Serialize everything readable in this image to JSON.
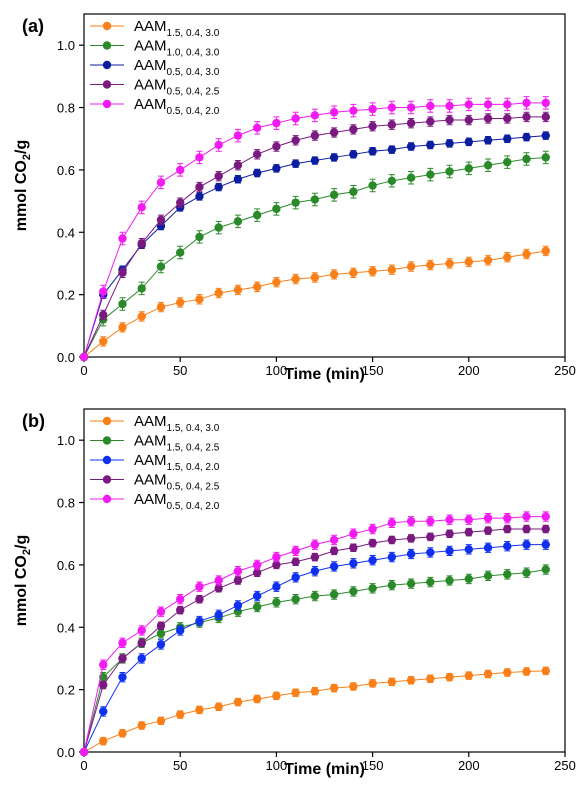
{
  "chart_data": [
    {
      "type": "line",
      "panel_label": "(a)",
      "xlabel": "Time (min)",
      "ylabel": {
        "text": "mmol CO",
        "sub": "2",
        "after": "/g"
      },
      "x": [
        0,
        10,
        20,
        30,
        40,
        50,
        60,
        70,
        80,
        90,
        100,
        110,
        120,
        130,
        140,
        150,
        160,
        170,
        180,
        190,
        200,
        210,
        220,
        230,
        240
      ],
      "xlim": [
        0,
        250
      ],
      "ylim": [
        0,
        1.1
      ],
      "xticks": [
        0,
        50,
        100,
        150,
        200,
        250
      ],
      "yticks": [
        {
          "value": 0,
          "label": "0.0"
        },
        {
          "value": 0.2,
          "label": "0.2"
        },
        {
          "value": 0.4,
          "label": "0.4"
        },
        {
          "value": 0.6,
          "label": "0.6"
        },
        {
          "value": 0.8,
          "label": "0.8"
        },
        {
          "value": 1,
          "label": "1.0"
        }
      ],
      "series": [
        {
          "name": "AAM",
          "subscript": "1.5, 0.4, 3.0",
          "color": "#f97f18",
          "error": 0.015,
          "values": [
            0,
            0.05,
            0.095,
            0.13,
            0.16,
            0.175,
            0.185,
            0.205,
            0.215,
            0.225,
            0.24,
            0.25,
            0.255,
            0.265,
            0.27,
            0.275,
            0.28,
            0.29,
            0.295,
            0.3,
            0.305,
            0.31,
            0.32,
            0.33,
            0.34
          ]
        },
        {
          "name": "AAM",
          "subscript": "1.0, 0.4, 3.0",
          "color": "#2a8a2a",
          "error": 0.02,
          "values": [
            0,
            0.12,
            0.17,
            0.22,
            0.29,
            0.335,
            0.385,
            0.415,
            0.435,
            0.455,
            0.475,
            0.495,
            0.505,
            0.52,
            0.53,
            0.55,
            0.565,
            0.575,
            0.585,
            0.595,
            0.605,
            0.615,
            0.625,
            0.635,
            0.64
          ]
        },
        {
          "name": "AAM",
          "subscript": "0.5, 0.4, 3.0",
          "color": "#0c1ea0",
          "error": 0.012,
          "values": [
            0,
            0.2,
            0.28,
            0.36,
            0.42,
            0.48,
            0.515,
            0.545,
            0.57,
            0.59,
            0.605,
            0.62,
            0.63,
            0.64,
            0.65,
            0.66,
            0.665,
            0.675,
            0.68,
            0.685,
            0.69,
            0.695,
            0.7,
            0.705,
            0.71
          ]
        },
        {
          "name": "AAM",
          "subscript": "0.5, 0.4, 2.5",
          "color": "#7a1a80",
          "error": 0.015,
          "values": [
            0,
            0.135,
            0.27,
            0.365,
            0.44,
            0.495,
            0.545,
            0.58,
            0.615,
            0.65,
            0.675,
            0.695,
            0.71,
            0.72,
            0.73,
            0.74,
            0.745,
            0.75,
            0.755,
            0.76,
            0.76,
            0.765,
            0.765,
            0.77,
            0.77
          ]
        },
        {
          "name": "AAM",
          "subscript": "0.5, 0.4, 2.0",
          "color": "#f21cf2",
          "error": 0.02,
          "values": [
            0,
            0.21,
            0.38,
            0.48,
            0.56,
            0.6,
            0.64,
            0.68,
            0.71,
            0.735,
            0.75,
            0.765,
            0.775,
            0.785,
            0.79,
            0.795,
            0.8,
            0.8,
            0.805,
            0.805,
            0.81,
            0.81,
            0.81,
            0.815,
            0.815
          ]
        }
      ]
    },
    {
      "type": "line",
      "panel_label": "(b)",
      "xlabel": "Time (min)",
      "ylabel": {
        "text": "mmol CO",
        "sub": "2",
        "after": "/g"
      },
      "x": [
        0,
        10,
        20,
        30,
        40,
        50,
        60,
        70,
        80,
        90,
        100,
        110,
        120,
        130,
        140,
        150,
        160,
        170,
        180,
        190,
        200,
        210,
        220,
        230,
        240
      ],
      "xlim": [
        0,
        250
      ],
      "ylim": [
        0,
        1.1
      ],
      "xticks": [
        0,
        50,
        100,
        150,
        200,
        250
      ],
      "yticks": [
        {
          "value": 0,
          "label": "0.0"
        },
        {
          "value": 0.2,
          "label": "0.2"
        },
        {
          "value": 0.4,
          "label": "0.4"
        },
        {
          "value": 0.6,
          "label": "0.6"
        },
        {
          "value": 0.8,
          "label": "0.8"
        },
        {
          "value": 1,
          "label": "1.0"
        }
      ],
      "series": [
        {
          "name": "AAM",
          "subscript": "1.5, 0.4, 3.0",
          "color": "#f97f18",
          "error": 0.012,
          "values": [
            0,
            0.035,
            0.06,
            0.085,
            0.1,
            0.12,
            0.135,
            0.145,
            0.16,
            0.17,
            0.18,
            0.19,
            0.195,
            0.205,
            0.21,
            0.22,
            0.225,
            0.23,
            0.235,
            0.24,
            0.245,
            0.25,
            0.255,
            0.258,
            0.26
          ]
        },
        {
          "name": "AAM",
          "subscript": "1.5, 0.4, 2.5",
          "color": "#2a8a2a",
          "error": 0.015,
          "values": [
            0,
            0.24,
            0.3,
            0.35,
            0.38,
            0.4,
            0.415,
            0.43,
            0.45,
            0.465,
            0.48,
            0.49,
            0.5,
            0.505,
            0.515,
            0.525,
            0.535,
            0.54,
            0.545,
            0.55,
            0.555,
            0.565,
            0.57,
            0.575,
            0.585
          ]
        },
        {
          "name": "AAM",
          "subscript": "1.5, 0.4, 2.0",
          "color": "#1030f0",
          "error": 0.015,
          "values": [
            0,
            0.13,
            0.24,
            0.3,
            0.345,
            0.39,
            0.42,
            0.44,
            0.47,
            0.5,
            0.53,
            0.56,
            0.58,
            0.595,
            0.605,
            0.615,
            0.625,
            0.635,
            0.64,
            0.645,
            0.65,
            0.655,
            0.66,
            0.665,
            0.665
          ]
        },
        {
          "name": "AAM",
          "subscript": "0.5, 0.4, 2.5",
          "color": "#7a1a80",
          "error": 0.012,
          "values": [
            0,
            0.215,
            0.3,
            0.35,
            0.405,
            0.455,
            0.49,
            0.525,
            0.55,
            0.575,
            0.6,
            0.61,
            0.625,
            0.645,
            0.655,
            0.67,
            0.68,
            0.685,
            0.69,
            0.7,
            0.705,
            0.71,
            0.715,
            0.715,
            0.715
          ]
        },
        {
          "name": "AAM",
          "subscript": "0.5, 0.4, 2.0",
          "color": "#f21cf2",
          "error": 0.015,
          "values": [
            0,
            0.28,
            0.35,
            0.39,
            0.45,
            0.49,
            0.53,
            0.55,
            0.58,
            0.6,
            0.625,
            0.645,
            0.665,
            0.68,
            0.7,
            0.715,
            0.735,
            0.74,
            0.74,
            0.745,
            0.745,
            0.75,
            0.75,
            0.755,
            0.755
          ]
        }
      ]
    }
  ]
}
